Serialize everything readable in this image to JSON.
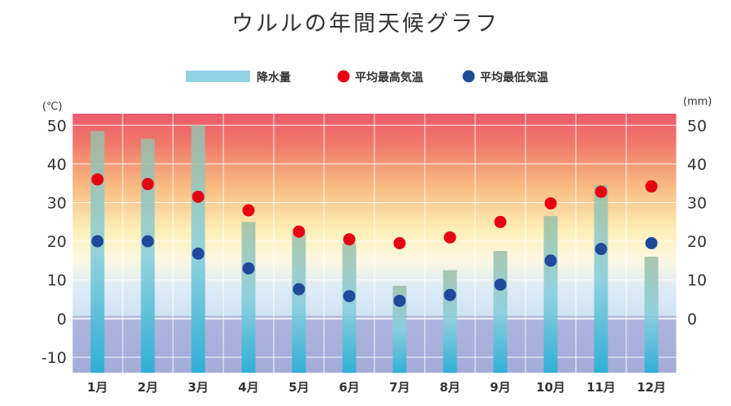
{
  "chart_data": {
    "type": "bar",
    "title": "ウルルの年間天候グラフ",
    "categories": [
      "1月",
      "2月",
      "3月",
      "4月",
      "5月",
      "6月",
      "7月",
      "8月",
      "9月",
      "10月",
      "11月",
      "12月"
    ],
    "series": [
      {
        "name": "降水量",
        "kind": "bar",
        "axis": "right",
        "color": "#8fd3e2",
        "values": [
          48.5,
          46.5,
          50,
          25,
          22,
          19.5,
          8.5,
          12.5,
          17.5,
          26.5,
          34.5,
          16
        ]
      },
      {
        "name": "平均最高気温",
        "kind": "point",
        "axis": "left",
        "color": "#e60012",
        "values": [
          36,
          34.8,
          31.5,
          28,
          22.5,
          20.5,
          19.5,
          21,
          25,
          29.8,
          32.8,
          34.2
        ]
      },
      {
        "name": "平均最低気温",
        "kind": "point",
        "axis": "left",
        "color": "#1f4a9c",
        "values": [
          20,
          20,
          16.8,
          13,
          7.6,
          5.8,
          4.6,
          6.1,
          8.8,
          15,
          18,
          19.5
        ]
      }
    ],
    "y_left": {
      "unit": "(℃)",
      "ticks": [
        "50",
        "40",
        "30",
        "20",
        "10",
        "0",
        "-10"
      ],
      "tick_values": [
        50,
        40,
        30,
        20,
        10,
        0,
        -10
      ],
      "ylim": [
        -14,
        53
      ]
    },
    "y_right": {
      "unit": "(mm)",
      "ticks": [
        "50",
        "40",
        "30",
        "20",
        "10",
        "0"
      ],
      "tick_values": [
        50,
        40,
        30,
        20,
        10,
        0
      ],
      "ylim": [
        -14,
        53
      ]
    },
    "background": {
      "top_color": "#ee5a6e",
      "mid_color": "#fdf3c4",
      "low_color": "#d3e5f5",
      "below_zero_color": "#a9b1da"
    },
    "grid": true,
    "legend_position": "top"
  }
}
